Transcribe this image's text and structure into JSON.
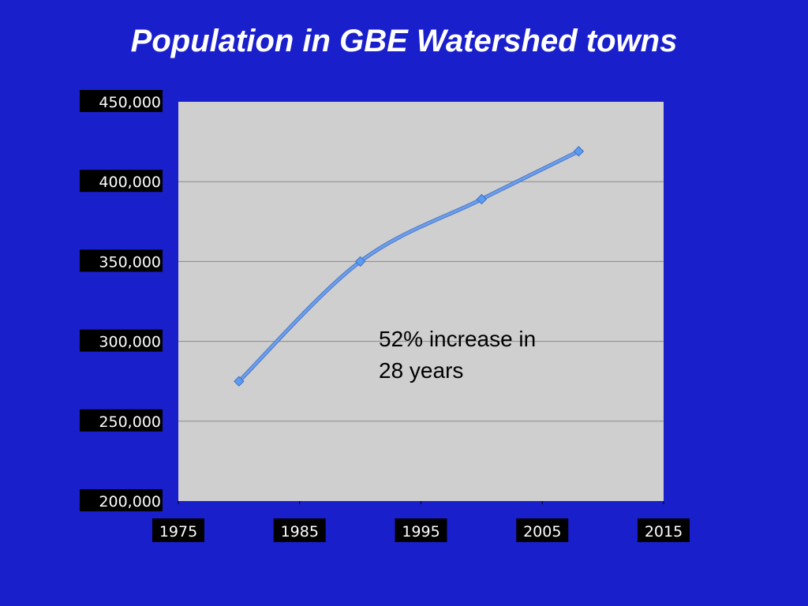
{
  "slide": {
    "title": "Population in GBE Watershed towns"
  },
  "chart_data": {
    "type": "line",
    "title": "",
    "xlabel": "",
    "ylabel": "",
    "x": [
      1980,
      1990,
      2000,
      2008
    ],
    "series": [
      {
        "name": "",
        "values": [
          275000,
          350000,
          389000,
          419000
        ]
      }
    ],
    "xlim": [
      1975,
      2015
    ],
    "ylim": [
      200000,
      450000
    ],
    "x_ticks": [
      1975,
      1985,
      1995,
      2005,
      2015
    ],
    "x_tick_labels": [
      "1975",
      "1985",
      "1995",
      "2005",
      "2015"
    ],
    "y_ticks": [
      200000,
      250000,
      300000,
      350000,
      400000,
      450000
    ],
    "y_tick_labels": [
      "200,000",
      "250,000",
      "300,000",
      "350,000",
      "400,000",
      "450,000"
    ],
    "grid": "horizontal",
    "legend": "none",
    "annotation": {
      "lines": [
        "52% increase in",
        "28 years"
      ]
    },
    "colors": {
      "background": "#1a1fcc",
      "plot_area": "#cfcfcf",
      "line": "#6d9eeb",
      "marker": "#5b9cf2",
      "grid": "#8a8a8a",
      "tick_label_bg": "#000000",
      "tick_label_text": "#ffffff"
    }
  }
}
